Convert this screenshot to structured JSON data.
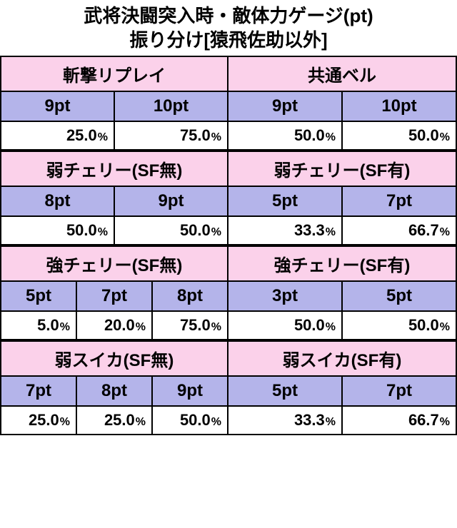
{
  "title_line1": "武将決闘突入時・敵体力ゲージ(pt)",
  "title_line2": "振り分け[猿飛佐助以外]",
  "colors": {
    "header_bg": "#fbd1ea",
    "sub_bg": "#b4b4ea",
    "val_bg": "#ffffff",
    "border": "#000000"
  },
  "blocks": [
    [
      {
        "title": "斬撃リプレイ",
        "pts": [
          "9pt",
          "10pt"
        ],
        "vals": [
          "25.0",
          "75.0"
        ]
      },
      {
        "title": "共通ベル",
        "pts": [
          "9pt",
          "10pt"
        ],
        "vals": [
          "50.0",
          "50.0"
        ]
      }
    ],
    [
      {
        "title": "弱チェリー(SF無)",
        "pts": [
          "8pt",
          "9pt"
        ],
        "vals": [
          "50.0",
          "50.0"
        ]
      },
      {
        "title": "弱チェリー(SF有)",
        "pts": [
          "5pt",
          "7pt"
        ],
        "vals": [
          "33.3",
          "66.7"
        ]
      }
    ],
    [
      {
        "title": "強チェリー(SF無)",
        "pts": [
          "5pt",
          "7pt",
          "8pt"
        ],
        "vals": [
          "5.0",
          "20.0",
          "75.0"
        ]
      },
      {
        "title": "強チェリー(SF有)",
        "pts": [
          "3pt",
          "5pt"
        ],
        "vals": [
          "50.0",
          "50.0"
        ]
      }
    ],
    [
      {
        "title": "弱スイカ(SF無)",
        "pts": [
          "7pt",
          "8pt",
          "9pt"
        ],
        "vals": [
          "25.0",
          "25.0",
          "50.0"
        ]
      },
      {
        "title": "弱スイカ(SF有)",
        "pts": [
          "5pt",
          "7pt"
        ],
        "vals": [
          "33.3",
          "66.7"
        ]
      }
    ]
  ]
}
